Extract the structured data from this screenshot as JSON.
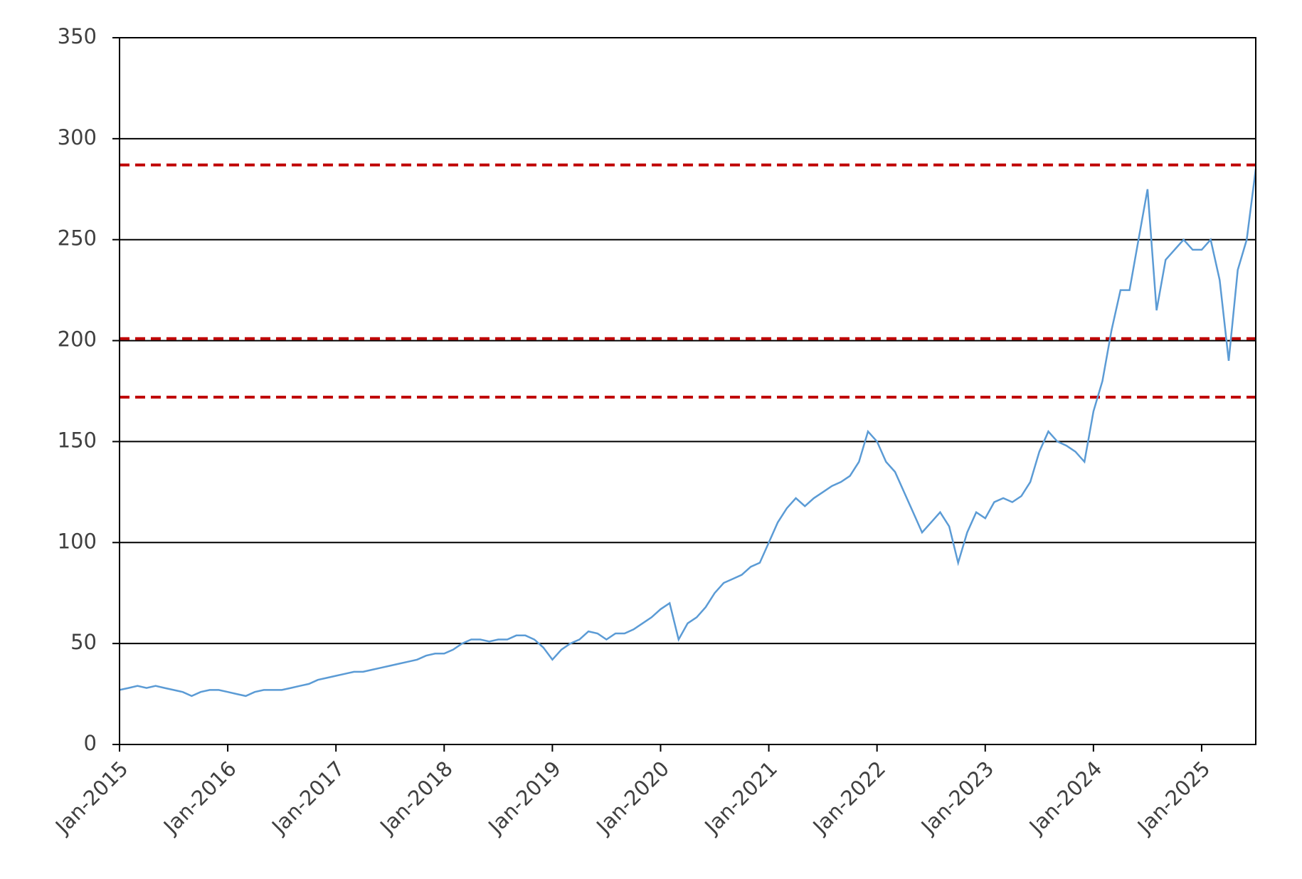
{
  "chart_data": {
    "type": "line",
    "x": [
      "2015-01",
      "2015-02",
      "2015-03",
      "2015-04",
      "2015-05",
      "2015-06",
      "2015-07",
      "2015-08",
      "2015-09",
      "2015-10",
      "2015-11",
      "2015-12",
      "2016-01",
      "2016-02",
      "2016-03",
      "2016-04",
      "2016-05",
      "2016-06",
      "2016-07",
      "2016-08",
      "2016-09",
      "2016-10",
      "2016-11",
      "2016-12",
      "2017-01",
      "2017-02",
      "2017-03",
      "2017-04",
      "2017-05",
      "2017-06",
      "2017-07",
      "2017-08",
      "2017-09",
      "2017-10",
      "2017-11",
      "2017-12",
      "2018-01",
      "2018-02",
      "2018-03",
      "2018-04",
      "2018-05",
      "2018-06",
      "2018-07",
      "2018-08",
      "2018-09",
      "2018-10",
      "2018-11",
      "2018-12",
      "2019-01",
      "2019-02",
      "2019-03",
      "2019-04",
      "2019-05",
      "2019-06",
      "2019-07",
      "2019-08",
      "2019-09",
      "2019-10",
      "2019-11",
      "2019-12",
      "2020-01",
      "2020-02",
      "2020-03",
      "2020-04",
      "2020-05",
      "2020-06",
      "2020-07",
      "2020-08",
      "2020-09",
      "2020-10",
      "2020-11",
      "2020-12",
      "2021-01",
      "2021-02",
      "2021-03",
      "2021-04",
      "2021-05",
      "2021-06",
      "2021-07",
      "2021-08",
      "2021-09",
      "2021-10",
      "2021-11",
      "2021-12",
      "2022-01",
      "2022-02",
      "2022-03",
      "2022-04",
      "2022-05",
      "2022-06",
      "2022-07",
      "2022-08",
      "2022-09",
      "2022-10",
      "2022-11",
      "2022-12",
      "2023-01",
      "2023-02",
      "2023-03",
      "2023-04",
      "2023-05",
      "2023-06",
      "2023-07",
      "2023-08",
      "2023-09",
      "2023-10",
      "2023-11",
      "2023-12",
      "2024-01",
      "2024-02",
      "2024-03",
      "2024-04",
      "2024-05",
      "2024-06",
      "2024-07",
      "2024-08",
      "2024-09",
      "2024-10",
      "2024-11",
      "2024-12",
      "2025-01",
      "2025-02",
      "2025-03",
      "2025-04",
      "2025-05",
      "2025-06",
      "2025-07"
    ],
    "series": [
      {
        "color": "#5b9bd5",
        "values": [
          27,
          28,
          29,
          28,
          29,
          28,
          27,
          26,
          24,
          26,
          27,
          27,
          26,
          25,
          24,
          26,
          27,
          27,
          27,
          28,
          29,
          30,
          32,
          33,
          34,
          35,
          36,
          36,
          37,
          38,
          39,
          40,
          41,
          42,
          44,
          45,
          45,
          47,
          50,
          52,
          52,
          51,
          52,
          52,
          54,
          54,
          52,
          48,
          42,
          47,
          50,
          52,
          56,
          55,
          52,
          55,
          55,
          57,
          60,
          63,
          67,
          70,
          52,
          60,
          63,
          68,
          75,
          80,
          82,
          84,
          88,
          90,
          100,
          110,
          117,
          122,
          118,
          122,
          125,
          128,
          130,
          133,
          140,
          155,
          150,
          140,
          135,
          125,
          115,
          105,
          110,
          115,
          108,
          90,
          105,
          115,
          112,
          120,
          122,
          120,
          123,
          130,
          145,
          155,
          150,
          148,
          145,
          140,
          165,
          180,
          205,
          225,
          225,
          250,
          275,
          215,
          240,
          245,
          250,
          245,
          245,
          250,
          230,
          190,
          235,
          250,
          285
        ]
      }
    ],
    "xlim": [
      "2015-01",
      "2025-07"
    ],
    "xticks": [
      {
        "value": "2015-01",
        "label": "Jan-2015"
      },
      {
        "value": "2016-01",
        "label": "Jan-2016"
      },
      {
        "value": "2017-01",
        "label": "Jan-2017"
      },
      {
        "value": "2018-01",
        "label": "Jan-2018"
      },
      {
        "value": "2019-01",
        "label": "Jan-2019"
      },
      {
        "value": "2020-01",
        "label": "Jan-2020"
      },
      {
        "value": "2021-01",
        "label": "Jan-2021"
      },
      {
        "value": "2022-01",
        "label": "Jan-2022"
      },
      {
        "value": "2023-01",
        "label": "Jan-2023"
      },
      {
        "value": "2024-01",
        "label": "Jan-2024"
      },
      {
        "value": "2025-01",
        "label": "Jan-2025"
      }
    ],
    "ylim": [
      0,
      350
    ],
    "yticks": [
      0,
      50,
      100,
      150,
      200,
      250,
      300,
      350
    ],
    "grid": true,
    "reference_lines": {
      "color": "#c00000",
      "values": [
        287,
        201,
        172
      ]
    }
  }
}
